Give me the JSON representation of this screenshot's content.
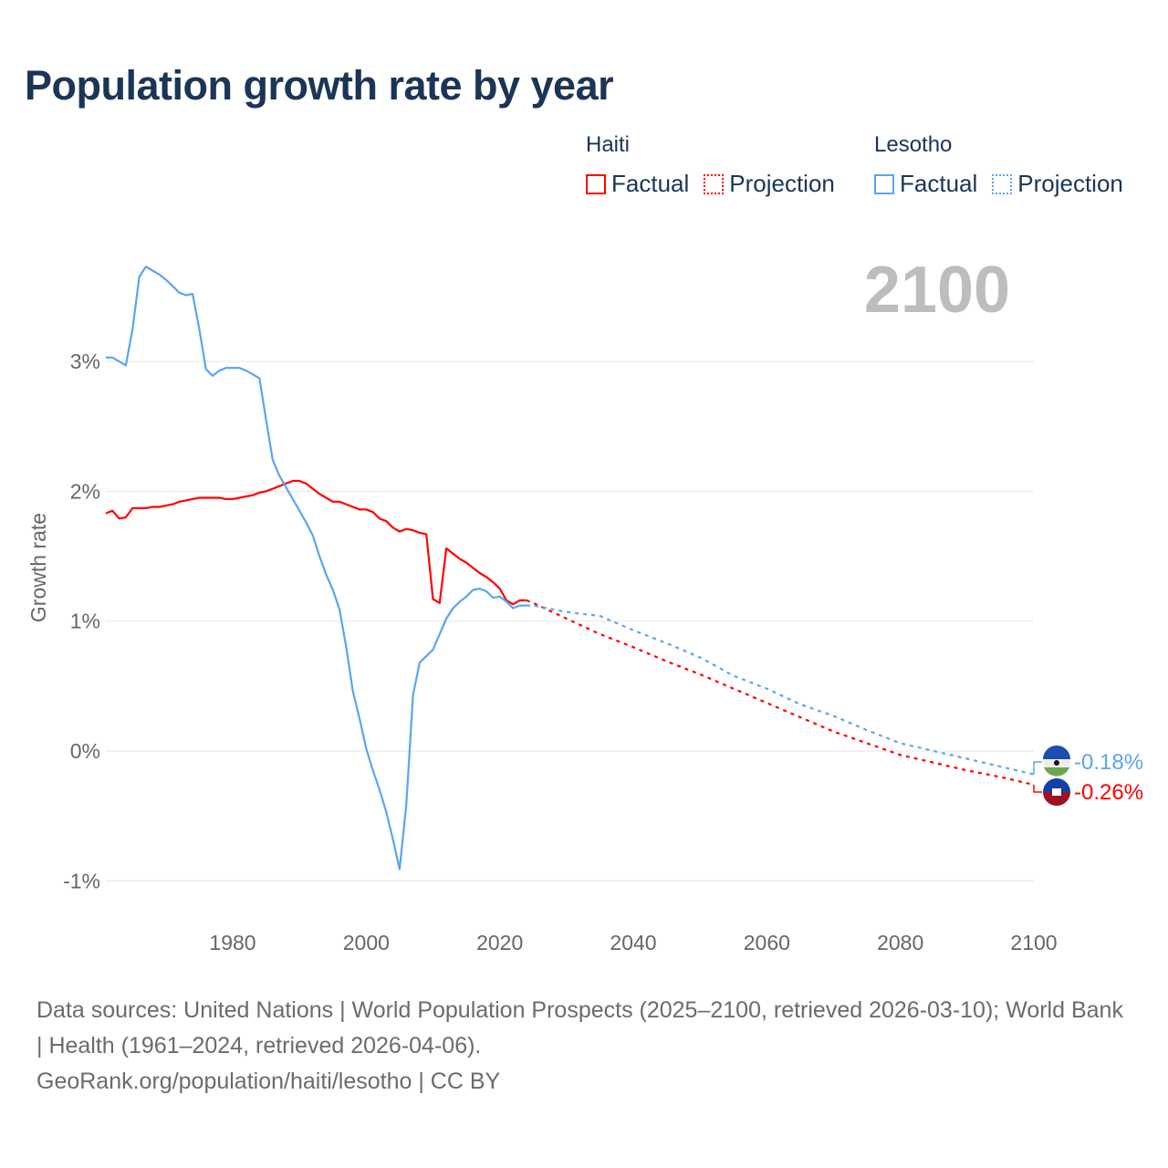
{
  "title": "Population growth rate by year",
  "legend": {
    "groups": [
      {
        "name": "Haiti",
        "color": "#ff0000",
        "factual": "Factual",
        "projection": "Projection"
      },
      {
        "name": "Lesotho",
        "color": "#5aa5ee",
        "factual": "Factual",
        "projection": "Projection"
      }
    ]
  },
  "current_year_label": "2100",
  "chart_data": {
    "type": "line",
    "title": "Population growth rate by year",
    "xlabel": "",
    "ylabel": "Growth rate",
    "xlim": [
      1961,
      2100
    ],
    "ylim": [
      -1.3,
      3.9
    ],
    "x_ticks": [
      "1980",
      "2000",
      "2020",
      "2040",
      "2060",
      "2080",
      "2100"
    ],
    "x_tick_values": [
      1980,
      2000,
      2020,
      2040,
      2060,
      2080,
      2100
    ],
    "y_ticks": [
      "3%",
      "2%",
      "1%",
      "0%",
      "-1%"
    ],
    "y_tick_values": [
      3,
      2,
      1,
      0,
      -1
    ],
    "grid": true,
    "series": [
      {
        "name": "Haiti Factual",
        "color": "#ff0000",
        "style": "solid",
        "x_start": 1961,
        "values": [
          1.83,
          1.85,
          1.79,
          1.8,
          1.87,
          1.87,
          1.87,
          1.88,
          1.88,
          1.89,
          1.9,
          1.92,
          1.93,
          1.94,
          1.95,
          1.95,
          1.95,
          1.95,
          1.94,
          1.94,
          1.95,
          1.96,
          1.97,
          1.99,
          2.0,
          2.02,
          2.04,
          2.06,
          2.08,
          2.08,
          2.06,
          2.02,
          1.98,
          1.95,
          1.92,
          1.92,
          1.9,
          1.88,
          1.86,
          1.86,
          1.84,
          1.79,
          1.77,
          1.72,
          1.69,
          1.71,
          1.7,
          1.68,
          1.67,
          1.17,
          1.14,
          1.56,
          1.52,
          1.48,
          1.45,
          1.41,
          1.37,
          1.34,
          1.3,
          1.25,
          1.16,
          1.13,
          1.16,
          1.16
        ]
      },
      {
        "name": "Lesotho Factual",
        "color": "#5aa5ee",
        "style": "solid",
        "x_start": 1961,
        "values": [
          3.03,
          3.03,
          3.0,
          2.97,
          3.25,
          3.65,
          3.73,
          3.7,
          3.67,
          3.63,
          3.58,
          3.53,
          3.51,
          3.52,
          3.25,
          2.94,
          2.89,
          2.93,
          2.95,
          2.95,
          2.95,
          2.93,
          2.9,
          2.87,
          2.55,
          2.24,
          2.12,
          2.03,
          1.94,
          1.85,
          1.76,
          1.66,
          1.5,
          1.36,
          1.24,
          1.09,
          0.8,
          0.46,
          0.25,
          0.02,
          -0.15,
          -0.3,
          -0.47,
          -0.68,
          -0.91,
          -0.42,
          0.43,
          0.68,
          0.73,
          0.78,
          0.9,
          1.02,
          1.1,
          1.15,
          1.19,
          1.24,
          1.25,
          1.23,
          1.18,
          1.19,
          1.15,
          1.1,
          1.12,
          1.12
        ]
      },
      {
        "name": "Haiti Projection",
        "color": "#ff0000",
        "style": "dotted",
        "x": [
          2024,
          2025,
          2030,
          2035,
          2040,
          2045,
          2050,
          2055,
          2060,
          2065,
          2070,
          2075,
          2080,
          2085,
          2090,
          2095,
          2100
        ],
        "values": [
          1.16,
          1.14,
          1.02,
          0.9,
          0.8,
          0.69,
          0.59,
          0.48,
          0.37,
          0.26,
          0.15,
          0.06,
          -0.03,
          -0.09,
          -0.15,
          -0.2,
          -0.26
        ]
      },
      {
        "name": "Lesotho Projection",
        "color": "#5aa5ee",
        "style": "dotted",
        "x": [
          2024,
          2025,
          2030,
          2035,
          2040,
          2045,
          2050,
          2055,
          2060,
          2065,
          2070,
          2075,
          2080,
          2085,
          2090,
          2095,
          2100
        ],
        "values": [
          1.12,
          1.12,
          1.07,
          1.04,
          0.93,
          0.83,
          0.72,
          0.58,
          0.48,
          0.36,
          0.27,
          0.16,
          0.06,
          0.0,
          -0.06,
          -0.12,
          -0.18
        ]
      }
    ],
    "end_labels": [
      {
        "country": "Lesotho",
        "text": "-0.18%",
        "color": "#5aa5ee"
      },
      {
        "country": "Haiti",
        "text": "-0.26%",
        "color": "#ff0000"
      }
    ]
  },
  "footer": {
    "sources": "Data sources: United Nations | World Population Prospects (2025–2100, retrieved 2026-03-10); World Bank | Health (1961–2024, retrieved 2026-04-06).",
    "attribution": "GeoRank.org/population/haiti/lesotho | CC BY"
  }
}
